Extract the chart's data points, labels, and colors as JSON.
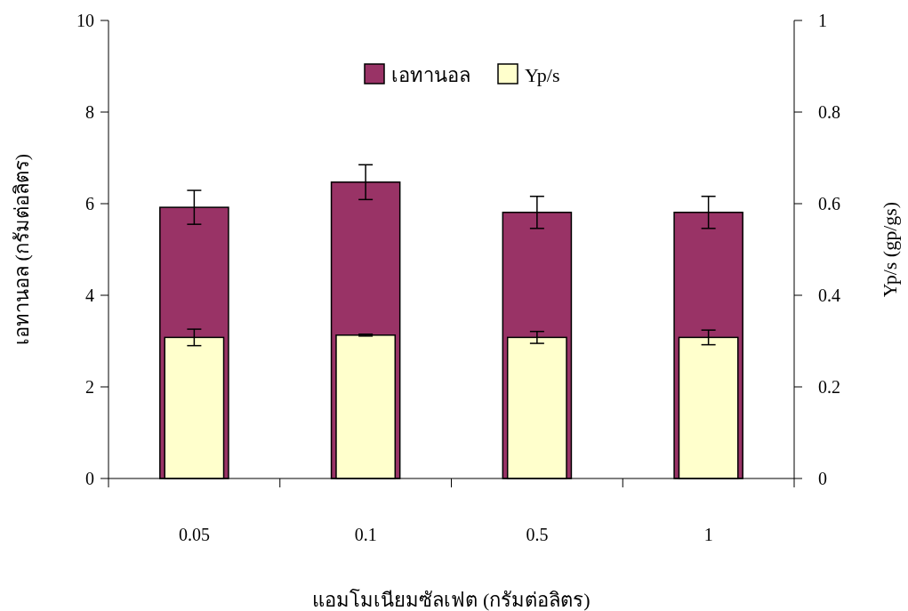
{
  "chart_data": {
    "type": "bar",
    "xlabel": "แอมโมเนียมซัลเฟต (กรัมต่อลิตร)",
    "ylabel": "เอทานอล (กรัมต่อลิตร)",
    "y2label": "Yp/s  (gp/gs)",
    "categories": [
      "0.05",
      "0.1",
      "0.5",
      "1"
    ],
    "series": [
      {
        "name": "เอทานอล",
        "color": "#993366",
        "values": [
          5.92,
          6.47,
          5.81,
          5.81
        ],
        "errors": [
          0.37,
          0.38,
          0.35,
          0.35
        ]
      },
      {
        "name": "Yp/s",
        "color": "#ffffcc",
        "axis": "y2",
        "values": [
          0.308,
          0.313,
          0.308,
          0.308
        ],
        "errors": [
          0.018,
          0.002,
          0.013,
          0.016
        ]
      }
    ],
    "ylim": [
      0,
      10
    ],
    "yticks": [
      0,
      2,
      4,
      6,
      8,
      10
    ],
    "y2lim": [
      0,
      1
    ],
    "y2ticks": [
      0,
      0.2,
      0.4,
      0.6,
      0.8,
      1
    ],
    "legend": "top",
    "grid": false
  }
}
